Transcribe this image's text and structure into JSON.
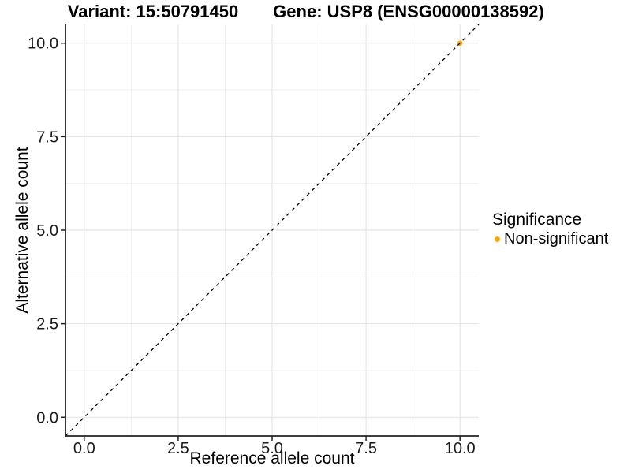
{
  "titles": {
    "left": "Variant: 15:50791450",
    "right": "Gene: USP8 (ENSG00000138592)"
  },
  "chart_data": {
    "type": "scatter",
    "title": "Variant: 15:50791450 — Gene: USP8 (ENSG00000138592)",
    "xlabel": "Reference allele count",
    "ylabel": "Alternative allele count",
    "xlim": [
      -0.5,
      10.5
    ],
    "ylim": [
      -0.5,
      10.5
    ],
    "x_ticks": [
      0.0,
      2.5,
      5.0,
      7.5,
      10.0
    ],
    "y_ticks": [
      0.0,
      2.5,
      5.0,
      7.5,
      10.0
    ],
    "x_minor_ticks": [
      1.25,
      3.75,
      6.25,
      8.75
    ],
    "y_minor_ticks": [
      1.25,
      3.75,
      6.25,
      8.75
    ],
    "grid": true,
    "series": [
      {
        "name": "Non-significant",
        "color": "#FFA500",
        "marker": "circle",
        "points": [
          {
            "x": 10,
            "y": 10
          }
        ]
      }
    ],
    "reference_line": {
      "style": "dashed",
      "slope": 1,
      "intercept": 0,
      "color": "#000000",
      "span": [
        [
          -0.5,
          -0.5
        ],
        [
          10.5,
          10.5
        ]
      ]
    },
    "legend": {
      "title": "Significance",
      "position": "right",
      "entries": [
        {
          "label": "Non-significant",
          "color": "#FFA500",
          "marker": "circle"
        }
      ]
    }
  },
  "style": {
    "background": "#ffffff",
    "grid_major_color": "#e2e2e2",
    "grid_minor_color": "#f0f0f0",
    "axis_color": "#222222",
    "text_color": "#1a1a1a",
    "point_color": "#FFA500",
    "reference_line_color": "#000000"
  }
}
